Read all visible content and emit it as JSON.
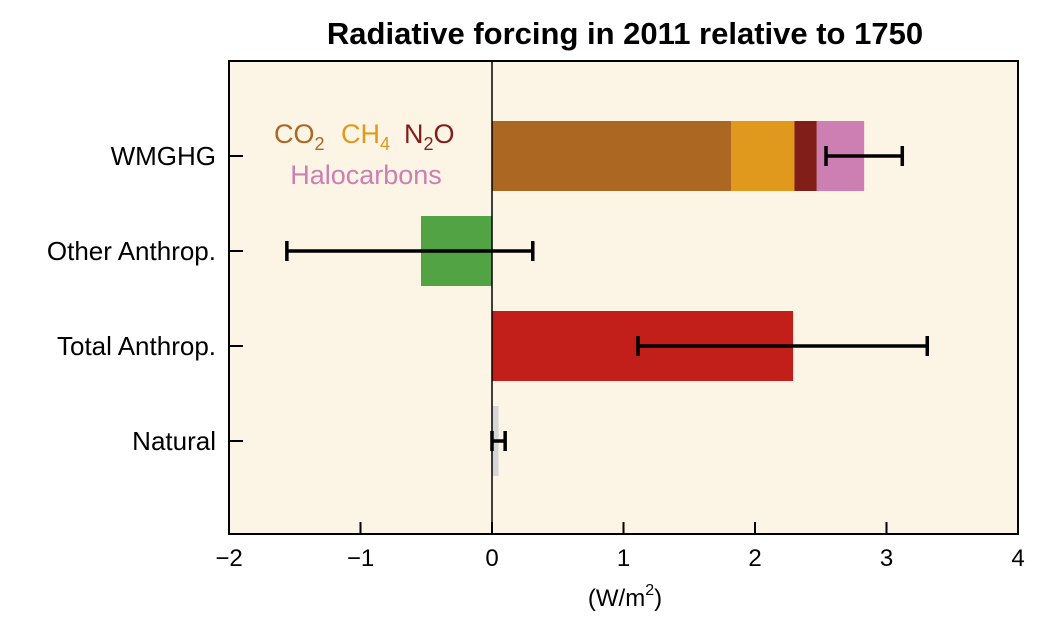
{
  "chart_data": {
    "type": "bar",
    "orientation": "horizontal",
    "stacked": true,
    "title": "Radiative forcing in 2011 relative to 1750",
    "xlabel": "(W/m²)",
    "xlabel_base": "(W/m",
    "xlabel_sup": "2",
    "xlabel_close": ")",
    "ylabel": "",
    "xlim": [
      -2,
      4
    ],
    "xticks": [
      -2,
      -1,
      0,
      1,
      2,
      3,
      4
    ],
    "xtick_labels": [
      "−2",
      "−1",
      "0",
      "1",
      "2",
      "3",
      "4"
    ],
    "categories": [
      "WMGHG",
      "Other Anthrop.",
      "Total Anthrop.",
      "Natural"
    ],
    "series": [
      {
        "name": "CO2",
        "color": "#ac6722",
        "values": [
          1.82,
          null,
          null,
          null
        ]
      },
      {
        "name": "CH4",
        "color": "#e1991d",
        "values": [
          0.48,
          null,
          null,
          null
        ]
      },
      {
        "name": "N2O",
        "color": "#801e17",
        "values": [
          0.17,
          null,
          null,
          null
        ]
      },
      {
        "name": "Halocarbons",
        "color": "#cd7eb3",
        "values": [
          0.36,
          null,
          null,
          null
        ]
      },
      {
        "name": "Other Anthrop.",
        "color": "#51a344",
        "values": [
          null,
          -0.54,
          null,
          null
        ]
      },
      {
        "name": "Total Anthrop.",
        "color": "#c21f1a",
        "values": [
          null,
          null,
          2.29,
          null
        ]
      },
      {
        "name": "Natural",
        "color": "#d6d6d6",
        "values": [
          null,
          null,
          null,
          0.05
        ]
      }
    ],
    "error_bars": [
      {
        "category": "WMGHG",
        "low": 2.54,
        "high": 3.12
      },
      {
        "category": "Other Anthrop.",
        "low": -1.56,
        "high": 0.31
      },
      {
        "category": "Total Anthrop.",
        "low": 1.11,
        "high": 3.31
      },
      {
        "category": "Natural",
        "low": 0.0,
        "high": 0.1
      }
    ],
    "legend": {
      "placement": "top-left",
      "entries": [
        {
          "name": "CO2",
          "base": "CO",
          "sub": "2",
          "color": "#ac6722"
        },
        {
          "name": "CH4",
          "base": "CH",
          "sub": "4",
          "color": "#e1991d"
        },
        {
          "name": "N2O",
          "base": "N",
          "sub": "2",
          "tail": "O",
          "color": "#801e17"
        },
        {
          "name": "Halocarbons",
          "base": "Halocarbons",
          "color": "#cd7eb3"
        }
      ]
    },
    "colors": {
      "plot_background": "#fcf4e4",
      "axis": "#000000",
      "error_bar": "#000000"
    }
  }
}
